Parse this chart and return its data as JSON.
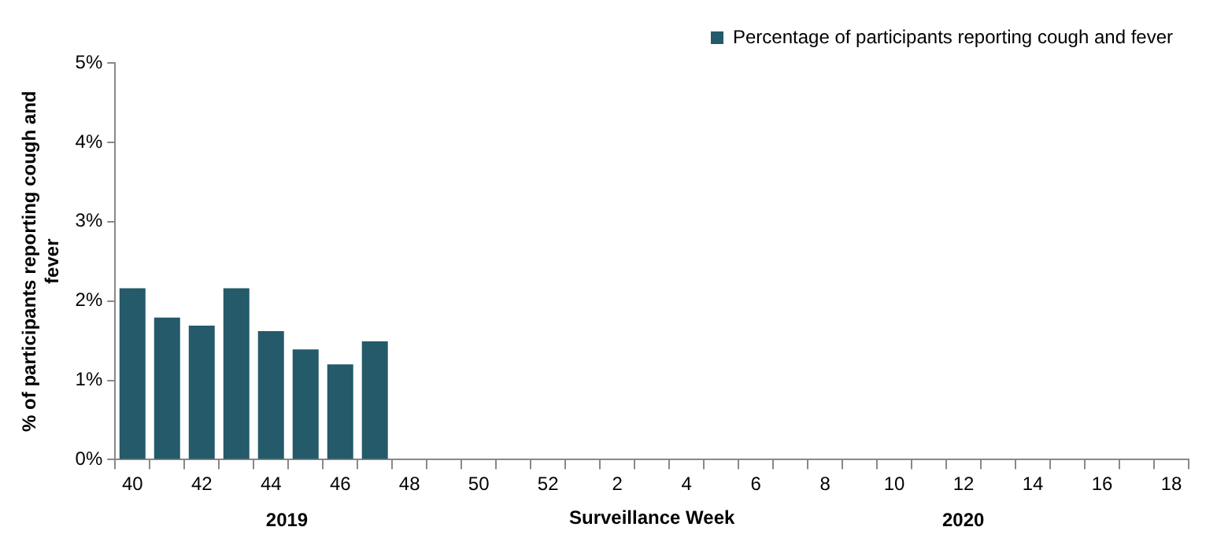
{
  "chart_data": {
    "type": "bar",
    "categories": [
      "40",
      null,
      "42",
      null,
      "44",
      null,
      "46",
      null,
      "48",
      null,
      "50",
      null,
      "52",
      null,
      "2",
      null,
      "4",
      null,
      "6",
      null,
      "8",
      null,
      "10",
      null,
      "12",
      null,
      "14",
      null,
      "16",
      null,
      "18"
    ],
    "series": [
      {
        "name": "Percentage of participants reporting cough and fever",
        "color": "#245a69",
        "values": [
          2.16,
          1.79,
          1.69,
          2.16,
          1.62,
          1.39,
          1.2,
          1.49,
          null,
          null,
          null,
          null,
          null,
          null,
          null,
          null,
          null,
          null,
          null,
          null,
          null,
          null,
          null,
          null,
          null,
          null,
          null,
          null,
          null,
          null,
          null
        ]
      }
    ],
    "xlabel": "Surveillance Week",
    "ylabel": "% of participants reporting cough and fever",
    "annotations": [
      "2019",
      "2020"
    ],
    "ylim": [
      0,
      5
    ],
    "yticks": [
      {
        "value": 0,
        "label": "0%"
      },
      {
        "value": 1,
        "label": "1%"
      },
      {
        "value": 2,
        "label": "2%"
      },
      {
        "value": 3,
        "label": "3%"
      },
      {
        "value": 4,
        "label": "4%"
      },
      {
        "value": 5,
        "label": "5%"
      }
    ],
    "legend": "top right",
    "grid": false
  }
}
